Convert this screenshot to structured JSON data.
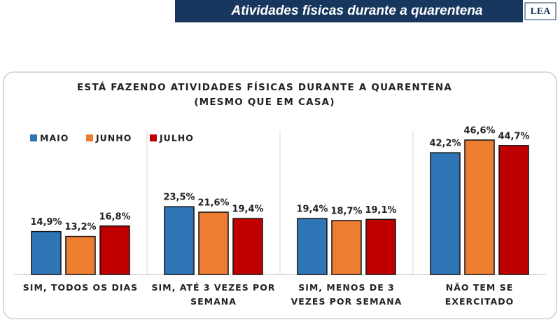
{
  "header": {
    "title": "Atividades físicas durante a quarentena",
    "logo": "LEA"
  },
  "chart_data": {
    "type": "bar",
    "title": "ESTÁ FAZENDO ATIVIDADES FÍSICAS DURANTE A QUARENTENA",
    "subtitle": "(MESMO QUE EM CASA)",
    "categories": [
      "SIM, TODOS OS DIAS",
      "SIM, ATÉ 3 VEZES POR SEMANA",
      "SIM, MENOS DE 3 VEZES POR SEMANA",
      "NÃO TEM SE EXERCITADO"
    ],
    "series": [
      {
        "name": "MAIO",
        "color": "#2e75b6",
        "values": [
          14.9,
          23.5,
          19.4,
          42.2
        ],
        "value_labels": [
          "14,9%",
          "23,5%",
          "19,4%",
          "42,2%"
        ]
      },
      {
        "name": "JUNHO",
        "color": "#ed7d31",
        "values": [
          13.2,
          21.6,
          18.7,
          46.6
        ],
        "value_labels": [
          "13,2%",
          "21,6%",
          "18,7%",
          "46,6%"
        ]
      },
      {
        "name": "JULHO",
        "color": "#c00000",
        "values": [
          16.8,
          19.4,
          19.1,
          44.7
        ],
        "value_labels": [
          "16,8%",
          "19,4%",
          "19,1%",
          "44,7%"
        ]
      }
    ],
    "ylim": [
      0,
      50
    ],
    "legend": "top-left"
  }
}
